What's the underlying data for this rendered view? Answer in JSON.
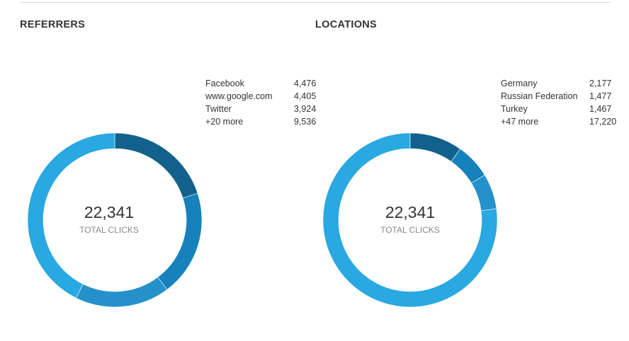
{
  "panels": [
    {
      "title": "REFERRERS",
      "total": "22,341",
      "total_label": "TOTAL CLICKS",
      "items": [
        {
          "label": "Facebook",
          "value": "4,476",
          "n": 4476
        },
        {
          "label": "www.google.com",
          "value": "4,405",
          "n": 4405
        },
        {
          "label": "Twitter",
          "value": "3,924",
          "n": 3924
        },
        {
          "label": "+20 more",
          "value": "9,536",
          "n": 9536
        }
      ]
    },
    {
      "title": "LOCATIONS",
      "total": "22,341",
      "total_label": "TOTAL CLICKS",
      "items": [
        {
          "label": "Germany",
          "value": "2,177",
          "n": 2177
        },
        {
          "label": "Russian Federation",
          "value": "1,477",
          "n": 1477
        },
        {
          "label": "Turkey",
          "value": "1,467",
          "n": 1467
        },
        {
          "label": "+47 more",
          "value": "17,220",
          "n": 17220
        }
      ]
    }
  ],
  "colors": [
    "#12618c",
    "#1681bb",
    "#2591cb",
    "#29a8e1"
  ]
}
